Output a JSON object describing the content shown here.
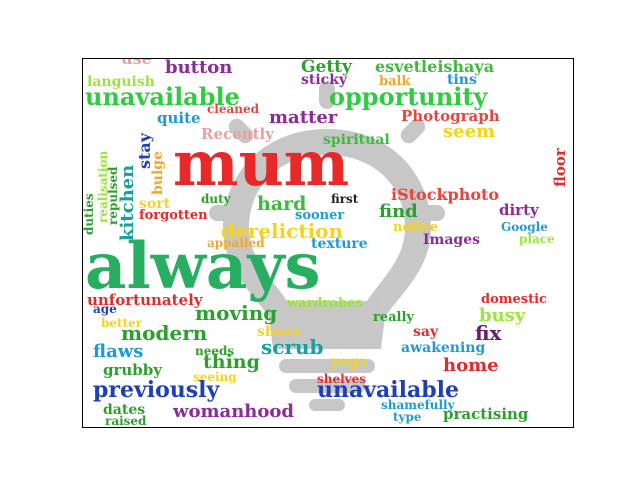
{
  "watermark_icon": "lightbulb-icon",
  "words": [
    {
      "text": "use",
      "color": "#e8a0a0"
    },
    {
      "text": "button",
      "color": "#8b2a9b"
    },
    {
      "text": "Getty",
      "color": "#2ca02c"
    },
    {
      "text": "esvetleishaya",
      "color": "#3dbb3d"
    },
    {
      "text": "languish",
      "color": "#9be53c"
    },
    {
      "text": "sticky",
      "color": "#8b2a9b"
    },
    {
      "text": "balk",
      "color": "#f6a623"
    },
    {
      "text": "tins",
      "color": "#1f9ad6"
    },
    {
      "text": "unavailable",
      "color": "#2ecc40"
    },
    {
      "text": "opportunity",
      "color": "#2ecc40"
    },
    {
      "text": "cleaned",
      "color": "#e8453c"
    },
    {
      "text": "quite",
      "color": "#1f9ad6"
    },
    {
      "text": "matter",
      "color": "#8b2a9b"
    },
    {
      "text": "Photograph",
      "color": "#e8453c"
    },
    {
      "text": "Recently",
      "color": "#e8a0a0"
    },
    {
      "text": "spiritual",
      "color": "#3dbb3d"
    },
    {
      "text": "seem",
      "color": "#f6d31e"
    },
    {
      "text": "mum",
      "color": "#e8292a"
    },
    {
      "text": "realisation",
      "color": "#9be53c"
    },
    {
      "text": "repulsed",
      "color": "#2ca02c"
    },
    {
      "text": "kitchen",
      "color": "#17a0a0"
    },
    {
      "text": "stay",
      "color": "#1f3fb8"
    },
    {
      "text": "bulge",
      "color": "#f6a623"
    },
    {
      "text": "floor",
      "color": "#e8292a"
    },
    {
      "text": "duties",
      "color": "#2ca02c"
    },
    {
      "text": "iStockphoto",
      "color": "#e8453c"
    },
    {
      "text": "first",
      "color": "#222222"
    },
    {
      "text": "sort",
      "color": "#f6d31e"
    },
    {
      "text": "duty",
      "color": "#2ca02c"
    },
    {
      "text": "hard",
      "color": "#3dbb3d"
    },
    {
      "text": "find",
      "color": "#2ca02c"
    },
    {
      "text": "dirty",
      "color": "#8b2a9b"
    },
    {
      "text": "forgotten",
      "color": "#e8292a"
    },
    {
      "text": "sooner",
      "color": "#1f9ad6"
    },
    {
      "text": "notice",
      "color": "#f6d31e"
    },
    {
      "text": "Google",
      "color": "#1f9ad6"
    },
    {
      "text": "dereliction",
      "color": "#f6d31e"
    },
    {
      "text": "Images",
      "color": "#8b2a9b"
    },
    {
      "text": "place",
      "color": "#9be53c"
    },
    {
      "text": "appalled",
      "color": "#f6a623"
    },
    {
      "text": "texture",
      "color": "#1f9ad6"
    },
    {
      "text": "always",
      "color": "#27ae60"
    },
    {
      "text": "unfortunately",
      "color": "#e8292a"
    },
    {
      "text": "wardrobes",
      "color": "#9be53c"
    },
    {
      "text": "domestic",
      "color": "#e8292a"
    },
    {
      "text": "age",
      "color": "#1f3fb8"
    },
    {
      "text": "moving",
      "color": "#2ca02c"
    },
    {
      "text": "really",
      "color": "#2ca02c"
    },
    {
      "text": "busy",
      "color": "#9be53c"
    },
    {
      "text": "better",
      "color": "#f6d31e"
    },
    {
      "text": "modern",
      "color": "#2ca02c"
    },
    {
      "text": "shoes",
      "color": "#f6d31e"
    },
    {
      "text": "say",
      "color": "#e8292a"
    },
    {
      "text": "fix",
      "color": "#6a1b6a"
    },
    {
      "text": "scrub",
      "color": "#17a0a0"
    },
    {
      "text": "flaws",
      "color": "#1f9ad6"
    },
    {
      "text": "needs",
      "color": "#2ca02c"
    },
    {
      "text": "awakening",
      "color": "#1f9ad6"
    },
    {
      "text": "thing",
      "color": "#2ca02c"
    },
    {
      "text": "yoga",
      "color": "#f6d31e"
    },
    {
      "text": "home",
      "color": "#e8292a"
    },
    {
      "text": "grubby",
      "color": "#2ca02c"
    },
    {
      "text": "seeing",
      "color": "#f6d31e"
    },
    {
      "text": "shelves",
      "color": "#e8292a"
    },
    {
      "text": "previously",
      "color": "#1f3fb8"
    },
    {
      "text": "unavailable",
      "color": "#1f3fb8"
    },
    {
      "text": "dates",
      "color": "#2ca02c"
    },
    {
      "text": "womanhood",
      "color": "#8b2a9b"
    },
    {
      "text": "shamefully",
      "color": "#1f9ad6"
    },
    {
      "text": "raised",
      "color": "#2ca02c"
    },
    {
      "text": "type",
      "color": "#1f9ad6"
    },
    {
      "text": "practising",
      "color": "#2ca02c"
    }
  ]
}
